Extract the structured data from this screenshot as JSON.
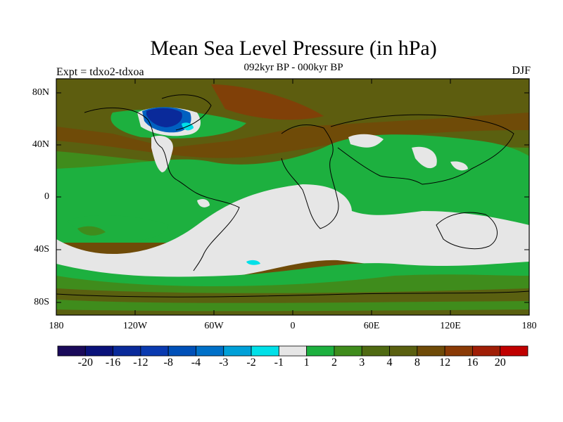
{
  "figure": {
    "title": "Mean Sea Level Pressure (in hPa)",
    "subtitle": "092kyr BP - 000kyr BP",
    "left_label": "Expt = tdxo2-tdxoa",
    "right_label": "DJF"
  },
  "map": {
    "y_ticks": [
      "80N",
      "40N",
      "0",
      "40S",
      "80S"
    ],
    "x_ticks": [
      "180",
      "120W",
      "60W",
      "0",
      "60E",
      "120E",
      "180"
    ],
    "colors": {
      "grey": "#e6e6e6",
      "green_light": "#1db03f",
      "green_mid": "#3f8c1c",
      "olive": "#5a6010",
      "brown": "#6f4b08",
      "brown_red": "#8a3a06",
      "cyan": "#00e0e8",
      "blue_mid": "#0060c0",
      "blue_dark": "#0a2a9a"
    }
  },
  "colorbar": {
    "colors": [
      "#1a0a5a",
      "#0a127a",
      "#0a2a9a",
      "#0a3ab0",
      "#0050b8",
      "#0070c8",
      "#00a0d8",
      "#00e0e8",
      "#e6e6e6",
      "#1db03f",
      "#3f8c1c",
      "#4f6a12",
      "#5a6010",
      "#6f4b08",
      "#8a3a06",
      "#a01e06",
      "#c00000"
    ],
    "labels": [
      "-20",
      "-16",
      "-12",
      "-8",
      "-4",
      "-3",
      "-2",
      "-1",
      "1",
      "2",
      "3",
      "4",
      "8",
      "12",
      "16",
      "20"
    ]
  }
}
